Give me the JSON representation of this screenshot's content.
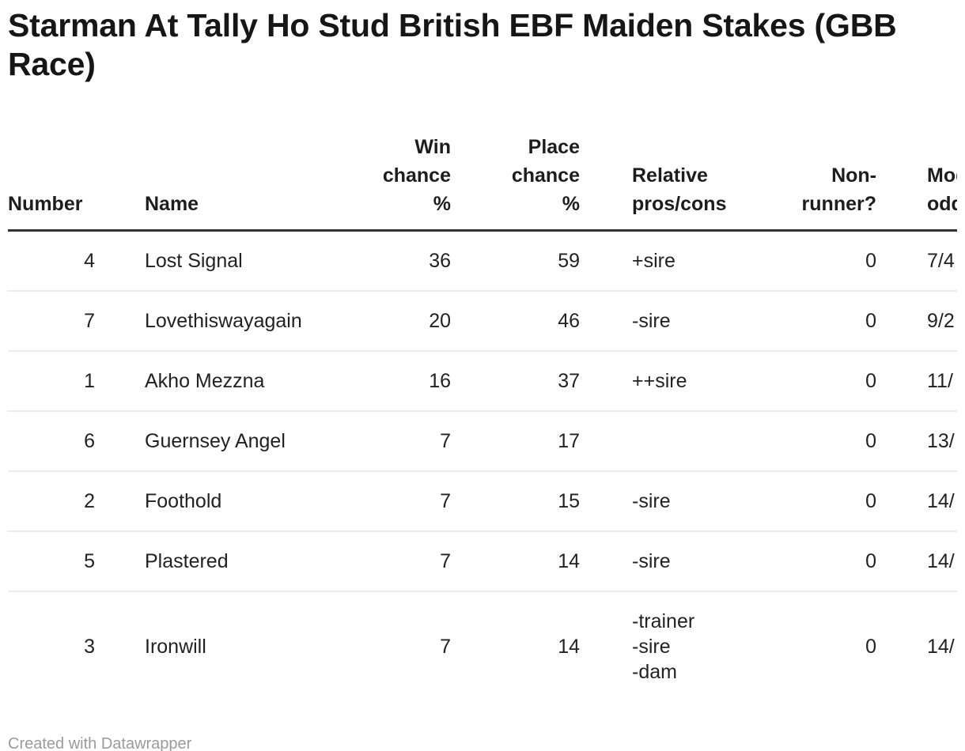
{
  "chart_data": {
    "type": "table",
    "title": "Starman At Tally Ho Stud British EBF Maiden Stakes (GBB Race)",
    "credit": "Created with Datawrapper",
    "legend_position": "none",
    "grid": "horizontal-row-dividers",
    "columns": [
      {
        "key": "number",
        "label_lines": [
          "Number"
        ],
        "align": "right",
        "header_align": "left"
      },
      {
        "key": "name",
        "label_lines": [
          "Name"
        ],
        "align": "left",
        "header_align": "left"
      },
      {
        "key": "win_chance_pct",
        "label_lines": [
          "Win",
          "chance",
          "%"
        ],
        "align": "right",
        "header_align": "right"
      },
      {
        "key": "place_chance_pct",
        "label_lines": [
          "Place",
          "chance",
          "%"
        ],
        "align": "right",
        "header_align": "right"
      },
      {
        "key": "relative_pros_cons",
        "label_lines": [
          "Relative",
          "pros/cons"
        ],
        "align": "left",
        "header_align": "left"
      },
      {
        "key": "non_runner",
        "label_lines": [
          "Non-",
          "runner?"
        ],
        "align": "right",
        "header_align": "right"
      },
      {
        "key": "model_odds",
        "label_lines": [
          "Model",
          "odds"
        ],
        "align": "left",
        "header_align": "left",
        "clipped_at_right_edge": true
      }
    ],
    "rows": [
      {
        "number": 4,
        "name": "Lost Signal",
        "win_chance_pct": 36,
        "place_chance_pct": 59,
        "relative_pros_cons": [
          "+sire"
        ],
        "non_runner": 0,
        "model_odds": "7/4"
      },
      {
        "number": 7,
        "name": "Lovethiswayagain",
        "win_chance_pct": 20,
        "place_chance_pct": 46,
        "relative_pros_cons": [
          "-sire"
        ],
        "non_runner": 0,
        "model_odds": "9/2"
      },
      {
        "number": 1,
        "name": "Akho Mezzna",
        "win_chance_pct": 16,
        "place_chance_pct": 37,
        "relative_pros_cons": [
          "++sire"
        ],
        "non_runner": 0,
        "model_odds": "11/"
      },
      {
        "number": 6,
        "name": "Guernsey Angel",
        "win_chance_pct": 7,
        "place_chance_pct": 17,
        "relative_pros_cons": [],
        "non_runner": 0,
        "model_odds": "13/"
      },
      {
        "number": 2,
        "name": "Foothold",
        "win_chance_pct": 7,
        "place_chance_pct": 15,
        "relative_pros_cons": [
          "-sire"
        ],
        "non_runner": 0,
        "model_odds": "14/"
      },
      {
        "number": 5,
        "name": "Plastered",
        "win_chance_pct": 7,
        "place_chance_pct": 14,
        "relative_pros_cons": [
          "-sire"
        ],
        "non_runner": 0,
        "model_odds": "14/"
      },
      {
        "number": 3,
        "name": "Ironwill",
        "win_chance_pct": 7,
        "place_chance_pct": 14,
        "relative_pros_cons": [
          "-trainer",
          "-sire",
          "-dam"
        ],
        "non_runner": 0,
        "model_odds": "14/"
      }
    ]
  },
  "colors": {
    "background": "#ffffff",
    "title_text": "#161616",
    "header_text": "#1d1d1d",
    "body_text": "#222222",
    "header_rule": "#333333",
    "row_divider": "#ececec",
    "credit_text": "#9b9b9b"
  }
}
